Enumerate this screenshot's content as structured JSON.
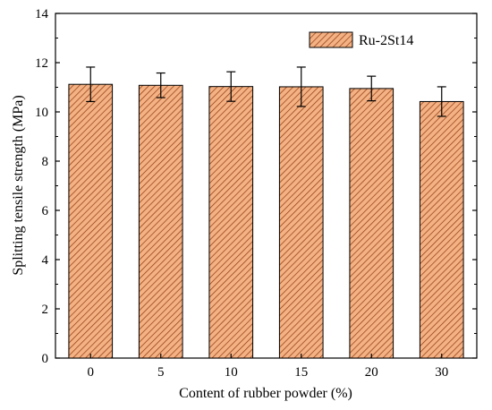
{
  "chart_data": {
    "type": "bar",
    "categories": [
      "0",
      "5",
      "10",
      "15",
      "20",
      "30"
    ],
    "series": [
      {
        "name": "Ru-2St14",
        "values": [
          11.12,
          11.08,
          11.03,
          11.02,
          10.95,
          10.42
        ],
        "error": [
          0.7,
          0.5,
          0.6,
          0.8,
          0.5,
          0.6
        ]
      }
    ],
    "xlabel": "Content of rubber powder (%)",
    "ylabel": "Splitting tensile strength (MPa)",
    "ylim": [
      0,
      14
    ],
    "yticks": [
      "0",
      "2",
      "4",
      "6",
      "8",
      "10",
      "12",
      "14"
    ],
    "grid": false,
    "legend_position": "top-right",
    "colors": {
      "bar_fill": "#f4b183",
      "hatch": "#8b3a10",
      "bar_edge": "#000000"
    }
  }
}
